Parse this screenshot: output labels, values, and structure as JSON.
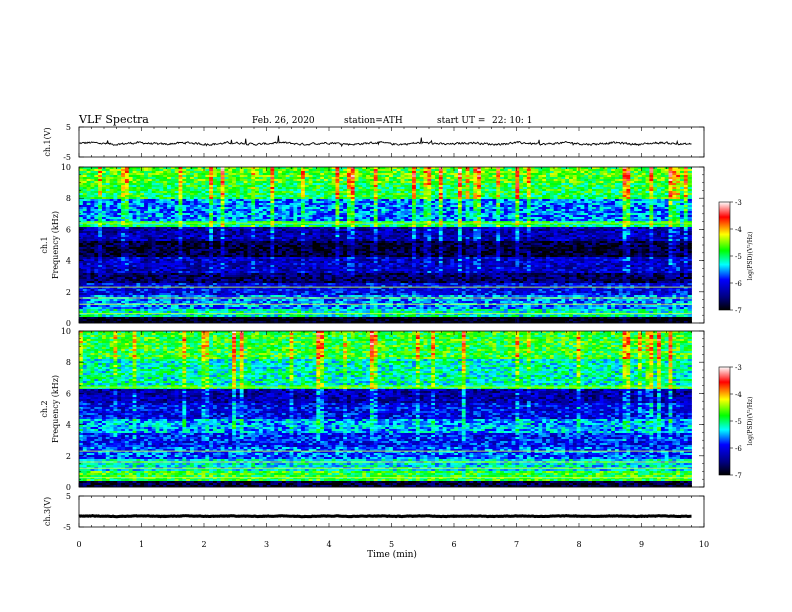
{
  "header": {
    "title": "VLF Spectra",
    "date": "Feb. 26, 2020",
    "station": "station=ATH",
    "start_ut_label": "start UT =",
    "start_ut_value": "22: 10: 1"
  },
  "chart_data": [
    {
      "type": "line",
      "name": "ch1-waveform",
      "ylabel": "ch.1(V)",
      "ylim": [
        -5,
        5
      ],
      "yticks": [
        5,
        -5
      ],
      "xlim": [
        0,
        10
      ],
      "baseline": -0.5,
      "noise_amplitude": 0.6
    },
    {
      "type": "heatmap",
      "name": "ch1-spectrogram",
      "ylabel_top": "ch.1",
      "ylabel": "Frequency (kHz)",
      "ylim": [
        0,
        10
      ],
      "yticks": [
        0,
        2,
        4,
        6,
        8,
        10
      ],
      "xlim": [
        0,
        10
      ],
      "data_xmax": 9.8,
      "colorbar": {
        "label": "log(PSD)(V²/Hz)",
        "range": [
          -7,
          -3
        ],
        "ticks": [
          "-3",
          "-4",
          "-5",
          "-6",
          "-7"
        ],
        "colors": [
          "#ffffff",
          "#ff0000",
          "#ffff00",
          "#00ff00",
          "#00ffff",
          "#0000ff",
          "#000080",
          "#000000"
        ]
      },
      "bands": [
        {
          "f0": 0.0,
          "f1": 0.4,
          "level": -7.0
        },
        {
          "f0": 0.4,
          "f1": 0.9,
          "level": -5.2
        },
        {
          "f0": 0.9,
          "f1": 1.8,
          "level": -5.6
        },
        {
          "f0": 1.8,
          "f1": 2.6,
          "level": -6.0
        },
        {
          "f0": 2.6,
          "f1": 3.2,
          "level": -6.6
        },
        {
          "f0": 3.2,
          "f1": 4.2,
          "level": -6.2
        },
        {
          "f0": 4.2,
          "f1": 5.2,
          "level": -6.8
        },
        {
          "f0": 5.2,
          "f1": 6.2,
          "level": -6.3
        },
        {
          "f0": 6.2,
          "f1": 6.6,
          "level": -5.0
        },
        {
          "f0": 6.6,
          "f1": 8.0,
          "level": -5.6
        },
        {
          "f0": 8.0,
          "f1": 9.0,
          "level": -4.9
        },
        {
          "f0": 9.0,
          "f1": 10.0,
          "level": -4.7
        }
      ]
    },
    {
      "type": "heatmap",
      "name": "ch2-spectrogram",
      "ylabel_top": "ch.2",
      "ylabel": "Frequency (kHz)",
      "ylim": [
        0,
        10
      ],
      "yticks": [
        0,
        2,
        4,
        6,
        8,
        10
      ],
      "xlim": [
        0,
        10
      ],
      "data_xmax": 9.8,
      "colorbar": {
        "label": "log(PSD)(V²/Hz)",
        "range": [
          -7,
          -3
        ],
        "ticks": [
          "-3",
          "-4",
          "-5",
          "-6",
          "-7"
        ],
        "colors": [
          "#ffffff",
          "#ff0000",
          "#ffff00",
          "#00ff00",
          "#00ffff",
          "#0000ff",
          "#000080",
          "#000000"
        ]
      },
      "bands": [
        {
          "f0": 0.0,
          "f1": 0.4,
          "level": -6.8
        },
        {
          "f0": 0.4,
          "f1": 1.0,
          "level": -4.8
        },
        {
          "f0": 1.0,
          "f1": 1.8,
          "level": -5.3
        },
        {
          "f0": 1.8,
          "f1": 2.6,
          "level": -5.7
        },
        {
          "f0": 2.6,
          "f1": 3.4,
          "level": -5.9
        },
        {
          "f0": 3.4,
          "f1": 4.4,
          "level": -5.5
        },
        {
          "f0": 4.4,
          "f1": 5.4,
          "level": -6.0
        },
        {
          "f0": 5.4,
          "f1": 6.3,
          "level": -6.3
        },
        {
          "f0": 6.3,
          "f1": 6.6,
          "level": -5.0
        },
        {
          "f0": 6.6,
          "f1": 8.2,
          "level": -5.2
        },
        {
          "f0": 8.2,
          "f1": 10.0,
          "level": -4.8
        }
      ]
    },
    {
      "type": "line",
      "name": "ch3-waveform",
      "ylabel": "ch.3(V)",
      "ylim": [
        -5,
        5
      ],
      "yticks": [
        5,
        -5
      ],
      "xlim": [
        0,
        10
      ],
      "baseline": -1.5,
      "noise_amplitude": 0.15
    }
  ],
  "xaxis": {
    "label": "Time (min)",
    "ticks": [
      "0",
      "1",
      "2",
      "3",
      "4",
      "5",
      "6",
      "7",
      "8",
      "9",
      "10"
    ],
    "range": [
      0,
      10
    ]
  }
}
